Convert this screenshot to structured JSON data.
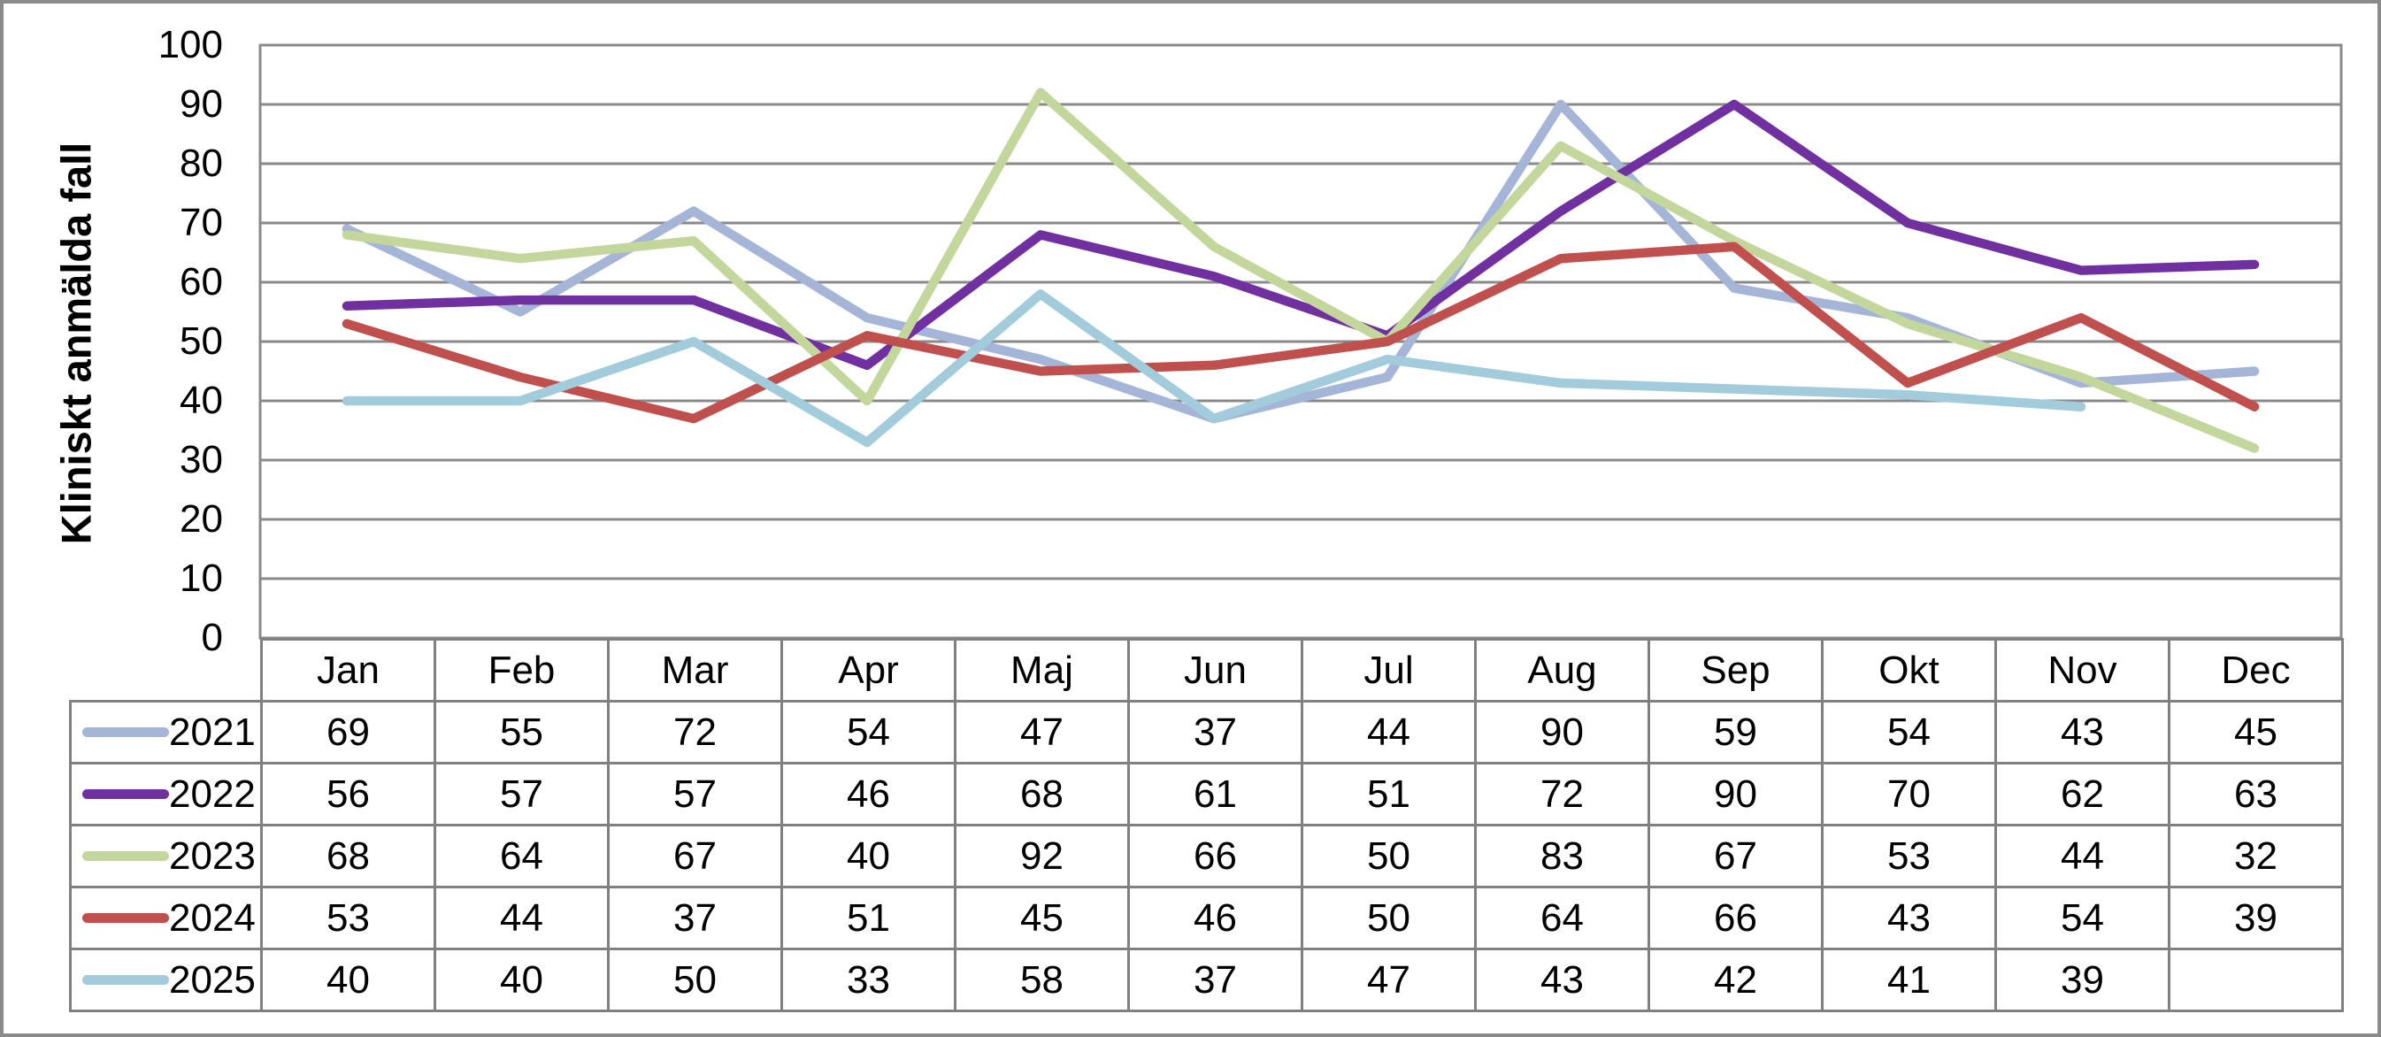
{
  "chart_data": {
    "type": "line",
    "title": "",
    "xlabel": "",
    "ylabel": "Kliniskt anmälda fall",
    "ylim": [
      0,
      100
    ],
    "yticks": [
      100,
      90,
      80,
      70,
      60,
      50,
      40,
      30,
      20,
      10,
      0
    ],
    "grid": "horizontal",
    "legend_position": "data-table-left-column",
    "categories": [
      "Jan",
      "Feb",
      "Mar",
      "Apr",
      "Maj",
      "Jun",
      "Jul",
      "Aug",
      "Sep",
      "Okt",
      "Nov",
      "Dec"
    ],
    "series": [
      {
        "name": "2021",
        "color": "#a5b5d8",
        "values": [
          69,
          55,
          72,
          54,
          47,
          37,
          44,
          90,
          59,
          54,
          43,
          45
        ]
      },
      {
        "name": "2022",
        "color": "#7030a0",
        "values": [
          56,
          57,
          57,
          46,
          68,
          61,
          51,
          72,
          90,
          70,
          62,
          63
        ]
      },
      {
        "name": "2023",
        "color": "#c3d69b",
        "values": [
          68,
          64,
          67,
          40,
          92,
          66,
          50,
          83,
          67,
          53,
          44,
          32
        ]
      },
      {
        "name": "2024",
        "color": "#c0504d",
        "values": [
          53,
          44,
          37,
          51,
          45,
          46,
          50,
          64,
          66,
          43,
          54,
          39
        ]
      },
      {
        "name": "2025",
        "color": "#a2cbdb",
        "values": [
          40,
          40,
          50,
          33,
          58,
          37,
          47,
          43,
          42,
          41,
          39,
          null
        ]
      }
    ]
  },
  "colors": {
    "gridline": "#8a8a8a",
    "plot_border": "#8a8a8a",
    "table_border": "#808080",
    "frame_border": "#8a8a8a",
    "text": "#000000"
  }
}
